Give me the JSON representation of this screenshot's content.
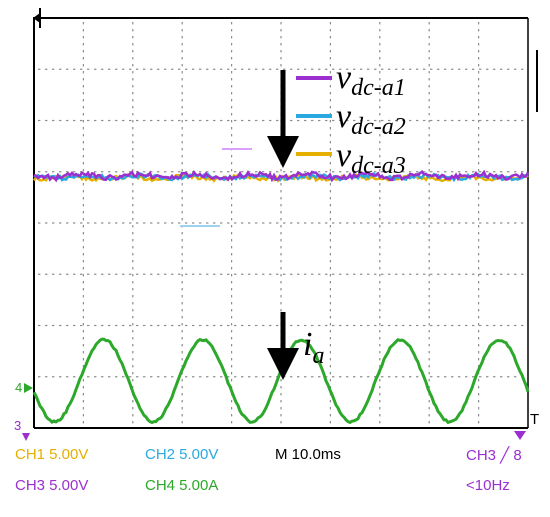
{
  "colors": {
    "ch1": "#e6b000",
    "ch2": "#2aa9e0",
    "ch3": "#9b2fd0",
    "ch4": "#2ca82a",
    "grid": "#8c8c8c",
    "frame": "#000000"
  },
  "legend": [
    {
      "base": "v",
      "sub": "dc-a1",
      "channel": "ch3"
    },
    {
      "base": "v",
      "sub": "dc-a2",
      "channel": "ch2"
    },
    {
      "base": "v",
      "sub": "dc-a3",
      "channel": "ch1"
    }
  ],
  "current_label": {
    "base": "i",
    "sub": "a"
  },
  "markers": {
    "ch4": "4",
    "ch3": "3",
    "right_edge": "T"
  },
  "readouts": {
    "ch1": "CH1  5.00V",
    "ch2": "CH2  5.00V",
    "ch3": "CH3  5.00V",
    "ch4": "CH4  5.00A",
    "timebase": "M 10.0ms",
    "trigger": "CH3 ╱ 8",
    "freq": "<10Hz"
  },
  "chart_data": {
    "type": "line",
    "title": "",
    "xlabel": "",
    "ylabel": "",
    "x_divisions": 10,
    "y_divisions": 8,
    "time_per_div_ms": 10.0,
    "series": [
      {
        "name": "v_dc-a1",
        "channel": "CH3",
        "volts_per_div": 5.0,
        "shape": "flat dc with small ripple"
      },
      {
        "name": "v_dc-a2",
        "channel": "CH2",
        "volts_per_div": 5.0,
        "shape": "flat dc with small ripple"
      },
      {
        "name": "v_dc-a3",
        "channel": "CH1",
        "volts_per_div": 5.0,
        "shape": "flat dc with small ripple"
      },
      {
        "name": "i_a",
        "channel": "CH4",
        "amps_per_div": 5.0,
        "shape": "sinusoid",
        "period_ms": 20,
        "amplitude_div": 0.4
      }
    ]
  }
}
